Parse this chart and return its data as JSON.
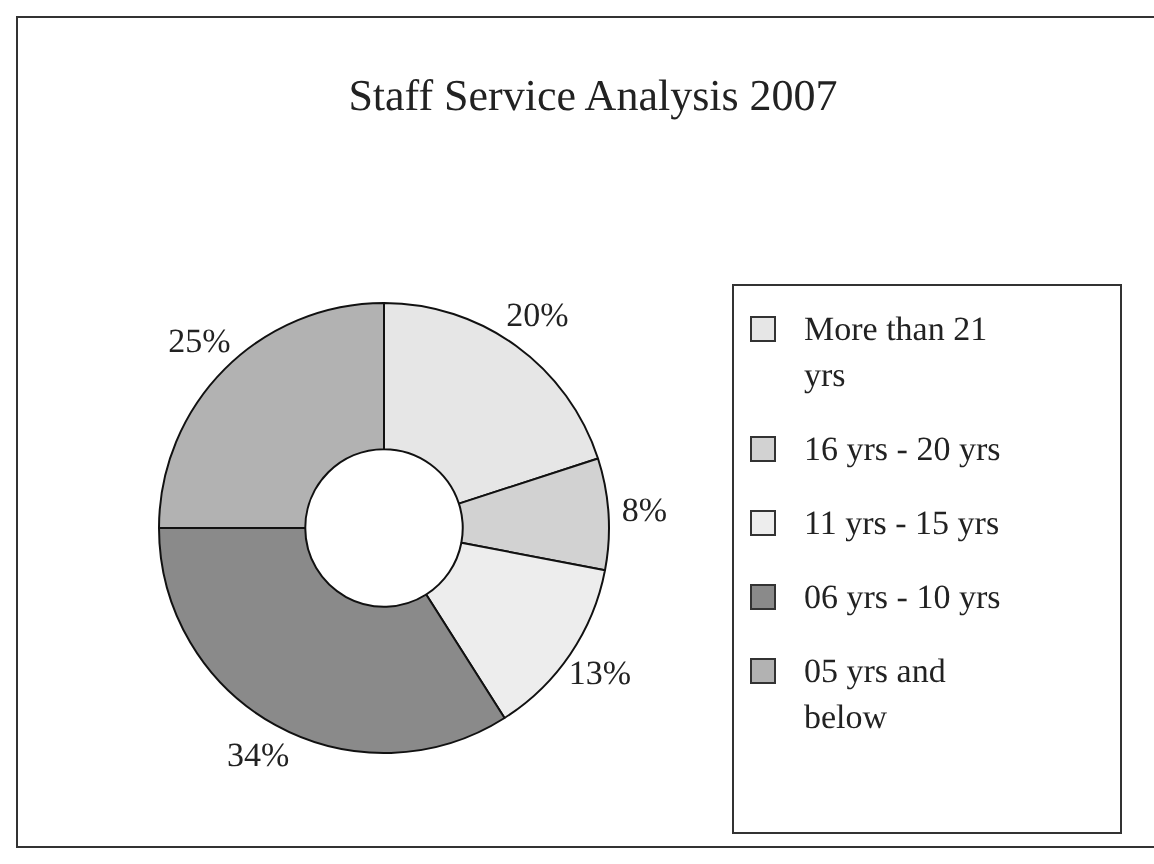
{
  "chart_data": {
    "type": "donut",
    "title": "Staff Service Analysis 2007",
    "categories": [
      "More than 21 yrs",
      "16 yrs - 20 yrs",
      "11 yrs - 15 yrs",
      "06 yrs - 10 yrs",
      "05 yrs and below"
    ],
    "values": [
      20,
      8,
      13,
      34,
      25
    ],
    "value_labels": [
      "20%",
      "8%",
      "13%",
      "34%",
      "25%"
    ],
    "colors": [
      "#e6e6e6",
      "#d2d2d2",
      "#ededed",
      "#8a8a8a",
      "#b2b2b2"
    ],
    "legend": "right"
  }
}
